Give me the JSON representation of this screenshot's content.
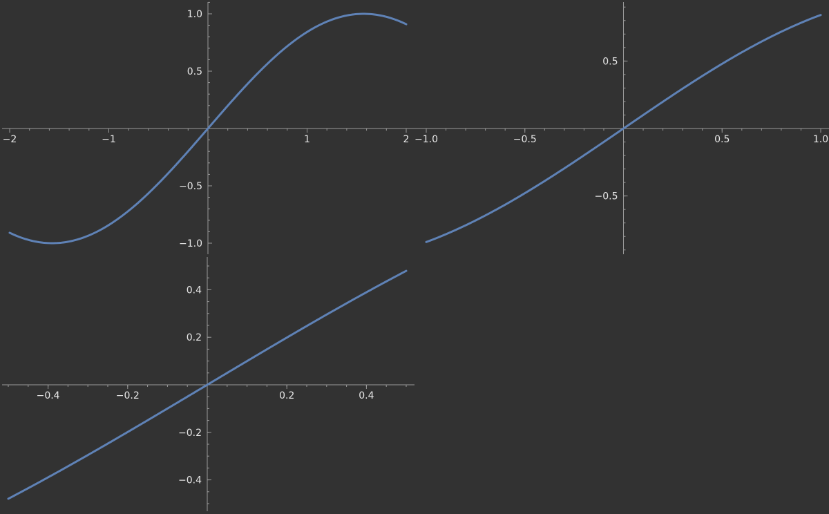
{
  "colors": {
    "background": "#323232",
    "axis": "#9a9a9a",
    "text": "#e8e8e8",
    "series": "#5f82b6"
  },
  "chart_data": [
    {
      "type": "line",
      "function": "sin(x)",
      "xlim": [
        -2,
        2
      ],
      "ylim": [
        -1.0,
        1.0
      ],
      "x_ticks": [
        -2,
        -1,
        1,
        2
      ],
      "x_tick_labels": [
        "−2",
        "−1",
        "1",
        "2"
      ],
      "y_ticks": [
        -1.0,
        -0.5,
        0.5,
        1.0
      ],
      "y_tick_labels": [
        "−1.0",
        "−0.5",
        "0.5",
        "1.0"
      ],
      "x": [
        -2,
        -1.5,
        -1,
        -0.5,
        0,
        0.5,
        1,
        1.5,
        2
      ],
      "y": [
        -0.909,
        -0.997,
        -0.841,
        -0.479,
        0,
        0.479,
        0.841,
        0.997,
        0.909
      ],
      "grid": false
    },
    {
      "type": "line",
      "function": "sin(arcsin(x) * 1) approx x",
      "xlim": [
        -1.0,
        1.0
      ],
      "ylim": [
        -0.85,
        0.85
      ],
      "x_ticks": [
        -1.0,
        -0.5,
        0.5,
        1.0
      ],
      "x_tick_labels": [
        "−1.0",
        "−0.5",
        "0.5",
        "1.0"
      ],
      "y_ticks": [
        -0.5,
        0.5
      ],
      "y_tick_labels": [
        "−0.5",
        "0.5"
      ],
      "x": [
        -1,
        -0.5,
        0,
        0.5,
        1
      ],
      "y": [
        -0.841,
        -0.479,
        0,
        0.479,
        0.841
      ],
      "grid": false
    },
    {
      "type": "line",
      "function": "approx x",
      "xlim": [
        -0.5,
        0.5
      ],
      "ylim": [
        -0.5,
        0.5
      ],
      "x_ticks": [
        -0.4,
        -0.2,
        0.2,
        0.4
      ],
      "x_tick_labels": [
        "−0.4",
        "−0.2",
        "0.2",
        "0.4"
      ],
      "y_ticks": [
        -0.4,
        -0.2,
        0.2,
        0.4
      ],
      "y_tick_labels": [
        "−0.4",
        "−0.2",
        "0.2",
        "0.4"
      ],
      "x": [
        -0.5,
        -0.25,
        0,
        0.25,
        0.5
      ],
      "y": [
        -0.479,
        -0.247,
        0,
        0.247,
        0.479
      ],
      "grid": false
    }
  ]
}
